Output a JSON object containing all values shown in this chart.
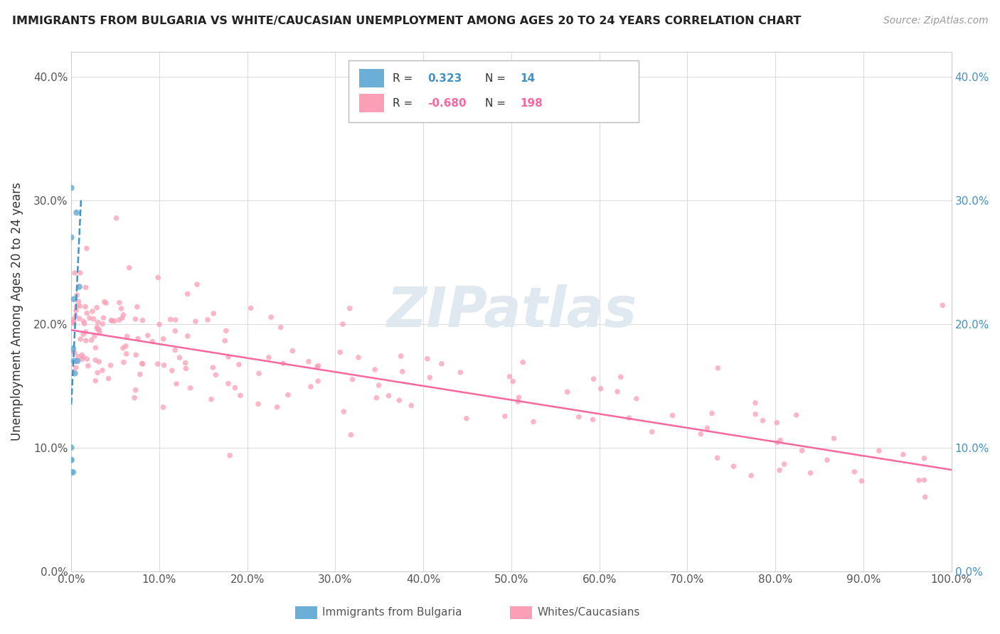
{
  "title": "IMMIGRANTS FROM BULGARIA VS WHITE/CAUCASIAN UNEMPLOYMENT AMONG AGES 20 TO 24 YEARS CORRELATION CHART",
  "source": "Source: ZipAtlas.com",
  "ylabel": "Unemployment Among Ages 20 to 24 years",
  "xlim": [
    0.0,
    1.0
  ],
  "ylim": [
    0.0,
    0.42
  ],
  "xticks": [
    0.0,
    0.1,
    0.2,
    0.3,
    0.4,
    0.5,
    0.6,
    0.7,
    0.8,
    0.9,
    1.0
  ],
  "xticklabels": [
    "0.0%",
    "10.0%",
    "20.0%",
    "30.0%",
    "40.0%",
    "50.0%",
    "60.0%",
    "70.0%",
    "80.0%",
    "90.0%",
    "100.0%"
  ],
  "yticks": [
    0.0,
    0.1,
    0.2,
    0.3,
    0.4
  ],
  "yticklabels": [
    "0.0%",
    "10.0%",
    "20.0%",
    "30.0%",
    "40.0%"
  ],
  "legend_R_blue": "0.323",
  "legend_N_blue": "14",
  "legend_R_pink": "-0.680",
  "legend_N_pink": "198",
  "blue_color": "#6baed6",
  "pink_color": "#fa9fb5",
  "blue_line_color": "#4292c6",
  "pink_line_color": "#f768a1",
  "blue_scatter_x": [
    0.0,
    0.0,
    0.0,
    0.0,
    0.0,
    0.0,
    0.002,
    0.002,
    0.003,
    0.003,
    0.004,
    0.006,
    0.007,
    0.009
  ],
  "blue_scatter_y": [
    0.08,
    0.09,
    0.1,
    0.27,
    0.31,
    0.09,
    0.18,
    0.08,
    0.17,
    0.22,
    0.16,
    0.29,
    0.17,
    0.23
  ],
  "blue_trend_x": [
    0.0,
    0.011
  ],
  "blue_trend_y": [
    0.135,
    0.3
  ],
  "pink_trend_x": [
    0.0,
    1.0
  ],
  "pink_trend_y": [
    0.195,
    0.082
  ]
}
